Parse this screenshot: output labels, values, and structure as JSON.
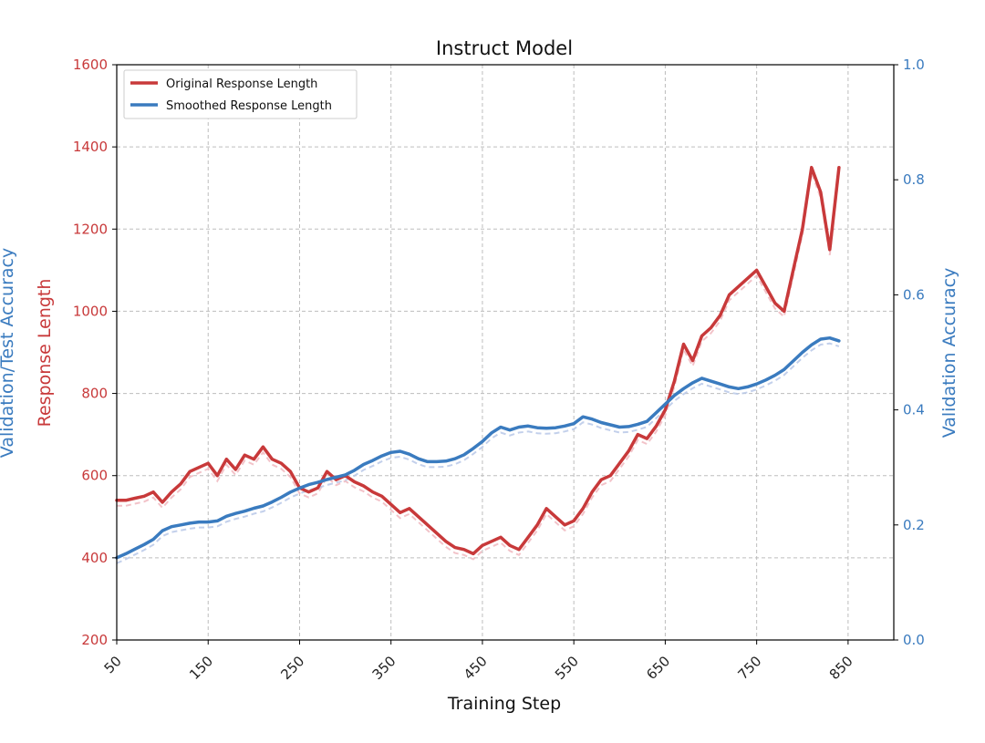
{
  "chart_data": {
    "type": "line",
    "title": "Instruct Model",
    "xlabel": "Training Step",
    "ylabel_left": "Response Length",
    "ylabel_left_outer": "Validation/Test Accuracy",
    "ylabel_right": "Validation Accuracy",
    "xlim": [
      50,
      900
    ],
    "ylim_left": [
      200,
      1600
    ],
    "ylim_right": [
      0.0,
      1.0
    ],
    "x_ticks": [
      50,
      150,
      250,
      350,
      450,
      550,
      650,
      750,
      850
    ],
    "y_left_ticks": [
      200,
      400,
      600,
      800,
      1000,
      1200,
      1400,
      1600
    ],
    "y_right_ticks": [
      "0.0",
      "0.2",
      "0.4",
      "0.6",
      "0.8",
      "1.0"
    ],
    "grid": true,
    "legend_position": "top-left",
    "colors": {
      "response": "#c8393a",
      "response_raw": "#f0b8c0",
      "accuracy": "#3a7bbf",
      "accuracy_raw": "#b8c8e8",
      "left_axis": "#c8393a",
      "right_axis": "#3a7bbf"
    },
    "series": [
      {
        "name": "Original Response Length",
        "axis": "left",
        "x": [
          50,
          60,
          70,
          80,
          90,
          100,
          110,
          120,
          130,
          140,
          150,
          160,
          170,
          180,
          190,
          200,
          210,
          220,
          230,
          240,
          250,
          260,
          270,
          280,
          290,
          300,
          310,
          320,
          330,
          340,
          350,
          360,
          370,
          380,
          390,
          400,
          410,
          420,
          430,
          440,
          450,
          460,
          470,
          480,
          490,
          500,
          510,
          520,
          530,
          540,
          550,
          560,
          570,
          580,
          590,
          600,
          610,
          620,
          630,
          640,
          650,
          660,
          670,
          680,
          690,
          700,
          710,
          720,
          730,
          740,
          750,
          760,
          770,
          780,
          790,
          800,
          810,
          820,
          830,
          840
        ],
        "values": [
          540,
          540,
          545,
          550,
          560,
          535,
          560,
          580,
          610,
          620,
          630,
          600,
          640,
          615,
          650,
          640,
          670,
          640,
          630,
          610,
          570,
          560,
          570,
          610,
          590,
          600,
          585,
          575,
          560,
          550,
          530,
          510,
          520,
          500,
          480,
          460,
          440,
          425,
          420,
          410,
          430,
          440,
          450,
          430,
          420,
          450,
          480,
          520,
          500,
          480,
          490,
          520,
          560,
          590,
          600,
          630,
          660,
          700,
          690,
          720,
          760,
          830,
          920,
          880,
          940,
          960,
          990,
          1040,
          1060,
          1080,
          1100,
          1060,
          1020,
          1000,
          1100,
          1200,
          1350,
          1290,
          1150,
          1350
        ]
      },
      {
        "name": "Smoothed Response Length",
        "axis": "right",
        "x": [
          50,
          60,
          70,
          80,
          90,
          100,
          110,
          120,
          130,
          140,
          150,
          160,
          170,
          180,
          190,
          200,
          210,
          220,
          230,
          240,
          250,
          260,
          270,
          280,
          290,
          300,
          310,
          320,
          330,
          340,
          350,
          360,
          370,
          380,
          390,
          400,
          410,
          420,
          430,
          440,
          450,
          460,
          470,
          480,
          490,
          500,
          510,
          520,
          530,
          540,
          550,
          560,
          570,
          580,
          590,
          600,
          610,
          620,
          630,
          640,
          650,
          660,
          670,
          680,
          690,
          700,
          710,
          720,
          730,
          740,
          750,
          760,
          770,
          780,
          790,
          800,
          810,
          820,
          830,
          840
        ],
        "values": [
          0.143,
          0.15,
          0.158,
          0.166,
          0.175,
          0.19,
          0.197,
          0.2,
          0.203,
          0.205,
          0.205,
          0.207,
          0.215,
          0.22,
          0.224,
          0.229,
          0.233,
          0.24,
          0.248,
          0.257,
          0.264,
          0.27,
          0.274,
          0.279,
          0.283,
          0.287,
          0.295,
          0.305,
          0.312,
          0.32,
          0.326,
          0.328,
          0.323,
          0.315,
          0.31,
          0.31,
          0.311,
          0.315,
          0.322,
          0.333,
          0.345,
          0.36,
          0.37,
          0.365,
          0.37,
          0.372,
          0.369,
          0.368,
          0.369,
          0.372,
          0.376,
          0.388,
          0.384,
          0.378,
          0.374,
          0.37,
          0.371,
          0.375,
          0.38,
          0.395,
          0.41,
          0.425,
          0.437,
          0.447,
          0.455,
          0.45,
          0.445,
          0.44,
          0.437,
          0.44,
          0.445,
          0.452,
          0.46,
          0.47,
          0.485,
          0.5,
          0.513,
          0.523,
          0.525,
          0.52
        ]
      }
    ]
  }
}
